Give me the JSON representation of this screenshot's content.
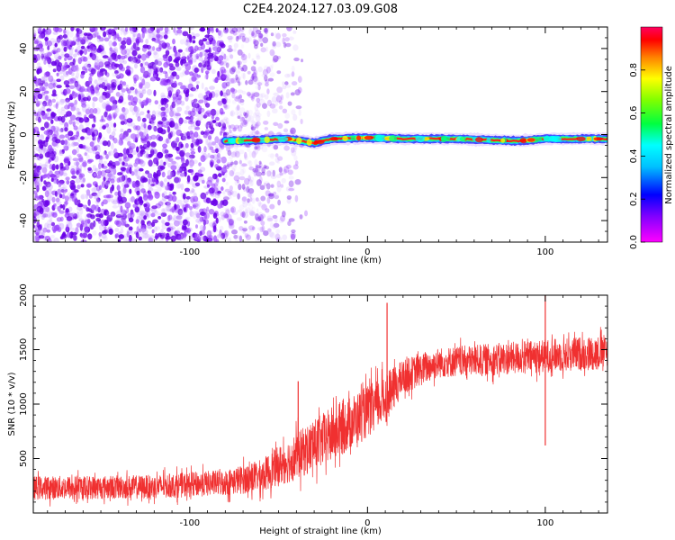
{
  "title": "C2E4.2024.127.03.09.G08",
  "colors": {
    "signal_track_center": "#ff1a1a",
    "snr_line": "#f03030",
    "scatter": "#7b00ff",
    "background": "#ffffff"
  },
  "chart_data": [
    {
      "type": "heatmap",
      "xlabel": "Height of straight line (km)",
      "ylabel": "Frequency (Hz)",
      "xlim": [
        -188,
        135
      ],
      "ylim": [
        -50,
        50
      ],
      "x_ticks": [
        -100,
        0,
        100
      ],
      "y_ticks": [
        -40,
        -20,
        0,
        20,
        40
      ],
      "grid": false,
      "colorbar": {
        "label": "Normalized spectral amplitude",
        "range": [
          0.0,
          1.0
        ],
        "ticks": [
          "0.0",
          "0.2",
          "0.4",
          "0.6",
          "0.8"
        ],
        "colormap": "hsv-rainbow (magenta-blue-cyan-green-yellow-red)"
      },
      "features": [
        {
          "name": "noise_region",
          "x_range": [
            -188,
            -32
          ],
          "freq_range": [
            -50,
            50
          ],
          "amplitude": 0.05
        },
        {
          "name": "signal_track",
          "x_range": [
            -80,
            135
          ],
          "freq_approx": -2,
          "amplitude": 1.0
        }
      ],
      "track_centerline": [
        {
          "x": -80,
          "freq": -3
        },
        {
          "x": -60,
          "freq": -2.5
        },
        {
          "x": -45,
          "freq": -2
        },
        {
          "x": -30,
          "freq": -4
        },
        {
          "x": -20,
          "freq": -2
        },
        {
          "x": 0,
          "freq": -1.5
        },
        {
          "x": 20,
          "freq": -2
        },
        {
          "x": 50,
          "freq": -2
        },
        {
          "x": 85,
          "freq": -3
        },
        {
          "x": 100,
          "freq": -2
        },
        {
          "x": 135,
          "freq": -2
        }
      ]
    },
    {
      "type": "line",
      "xlabel": "Height of straight line (km)",
      "ylabel": "SNR (10 * v/v)",
      "xlim": [
        -188,
        135
      ],
      "ylim": [
        0,
        2000
      ],
      "x_ticks": [
        -100,
        0,
        100
      ],
      "y_ticks": [
        500,
        1000,
        1500,
        2000
      ],
      "grid": false,
      "series": [
        {
          "values_envelope": [
            {
              "x": -188,
              "y_mean": 230,
              "y_noise": 110
            },
            {
              "x": -120,
              "y_mean": 240,
              "y_noise": 110
            },
            {
              "x": -80,
              "y_mean": 280,
              "y_noise": 120
            },
            {
              "x": -60,
              "y_mean": 340,
              "y_noise": 150
            },
            {
              "x": -40,
              "y_mean": 520,
              "y_noise": 220
            },
            {
              "x": -20,
              "y_mean": 720,
              "y_noise": 260
            },
            {
              "x": 0,
              "y_mean": 930,
              "y_noise": 240
            },
            {
              "x": 10,
              "y_mean": 1050,
              "y_noise": 230
            },
            {
              "x": 20,
              "y_mean": 1250,
              "y_noise": 160
            },
            {
              "x": 40,
              "y_mean": 1380,
              "y_noise": 140
            },
            {
              "x": 80,
              "y_mean": 1420,
              "y_noise": 150
            },
            {
              "x": 135,
              "y_mean": 1480,
              "y_noise": 160
            }
          ],
          "spikes": [
            {
              "x": -39,
              "y": 1210
            },
            {
              "x": 11,
              "y": 1930
            },
            {
              "x": 100,
              "y": 2000
            },
            {
              "x": 100,
              "y": 620
            }
          ]
        }
      ]
    }
  ]
}
